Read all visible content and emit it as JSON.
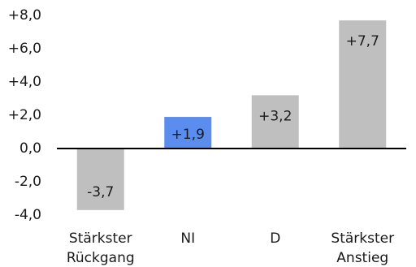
{
  "chart_data": {
    "type": "bar",
    "categories": [
      [
        "Stärkster",
        "Rückgang"
      ],
      [
        "NI"
      ],
      [
        "D"
      ],
      [
        "Stärkster",
        "Anstieg"
      ]
    ],
    "values": [
      -3.7,
      1.9,
      3.2,
      7.7
    ],
    "value_labels": [
      "-3,7",
      "+1,9",
      "+3,2",
      "+7,7"
    ],
    "ylim": [
      -4,
      8
    ],
    "yticks": [
      8,
      6,
      4,
      2,
      0,
      -2,
      -4
    ],
    "ytick_labels": [
      "+8,0",
      "+6,0",
      "+4,0",
      "+2,0",
      "0,0",
      "-2,0",
      "-4,0"
    ],
    "bar_colors": [
      "#bfbfbf",
      "#5b8def",
      "#bfbfbf",
      "#bfbfbf"
    ],
    "value_label_colors": [
      "#1a1a1a",
      "#ffffff",
      "#1a1a1a",
      "#1a1a1a"
    ],
    "grid": false,
    "zero_line_color": "#000000",
    "title": "",
    "xlabel": "",
    "ylabel": ""
  }
}
